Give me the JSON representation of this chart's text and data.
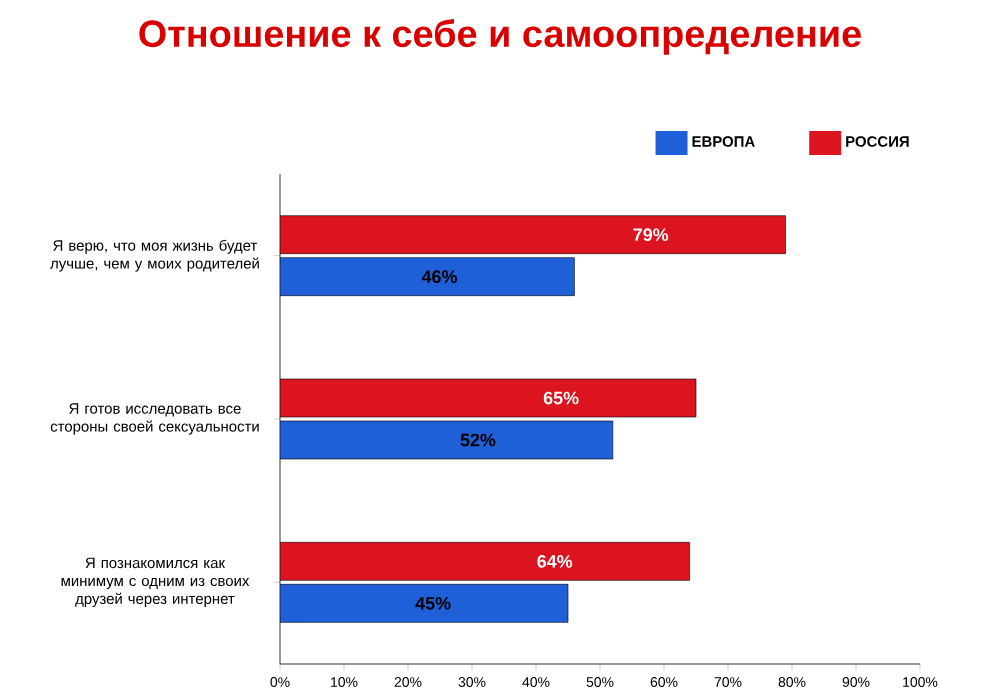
{
  "chart_data": {
    "type": "bar",
    "orientation": "horizontal",
    "title": "Отношение к себе и самоопределение",
    "categories": [
      "Я верю, что моя жизнь будет лучше, чем у моих родителей",
      "Я готов исследовать все стороны своей сексуальности",
      "Я познакомился как минимум с одним из своих друзей через интернет"
    ],
    "series": [
      {
        "name": "ЕВРОПА",
        "color": "#1f5fd8",
        "values": [
          46,
          52,
          45
        ],
        "value_labels": [
          "46%",
          "52%",
          "45%"
        ]
      },
      {
        "name": "РОССИЯ",
        "color": "#dc1420",
        "values": [
          79,
          65,
          64
        ],
        "value_labels": [
          "79%",
          "65%",
          "64%"
        ]
      }
    ],
    "xlim": [
      0,
      100
    ],
    "xticks": [
      {
        "value": 0,
        "label": "0%"
      },
      {
        "value": 10,
        "label": "10%"
      },
      {
        "value": 20,
        "label": "20%"
      },
      {
        "value": 30,
        "label": "30%"
      },
      {
        "value": 40,
        "label": "40%"
      },
      {
        "value": 50,
        "label": "50%"
      },
      {
        "value": 60,
        "label": "60%"
      },
      {
        "value": 70,
        "label": "70%"
      },
      {
        "value": 80,
        "label": "80%"
      },
      {
        "value": 90,
        "label": "90%"
      },
      {
        "value": 100,
        "label": "100%"
      }
    ],
    "legend": "top right",
    "grid": false
  }
}
